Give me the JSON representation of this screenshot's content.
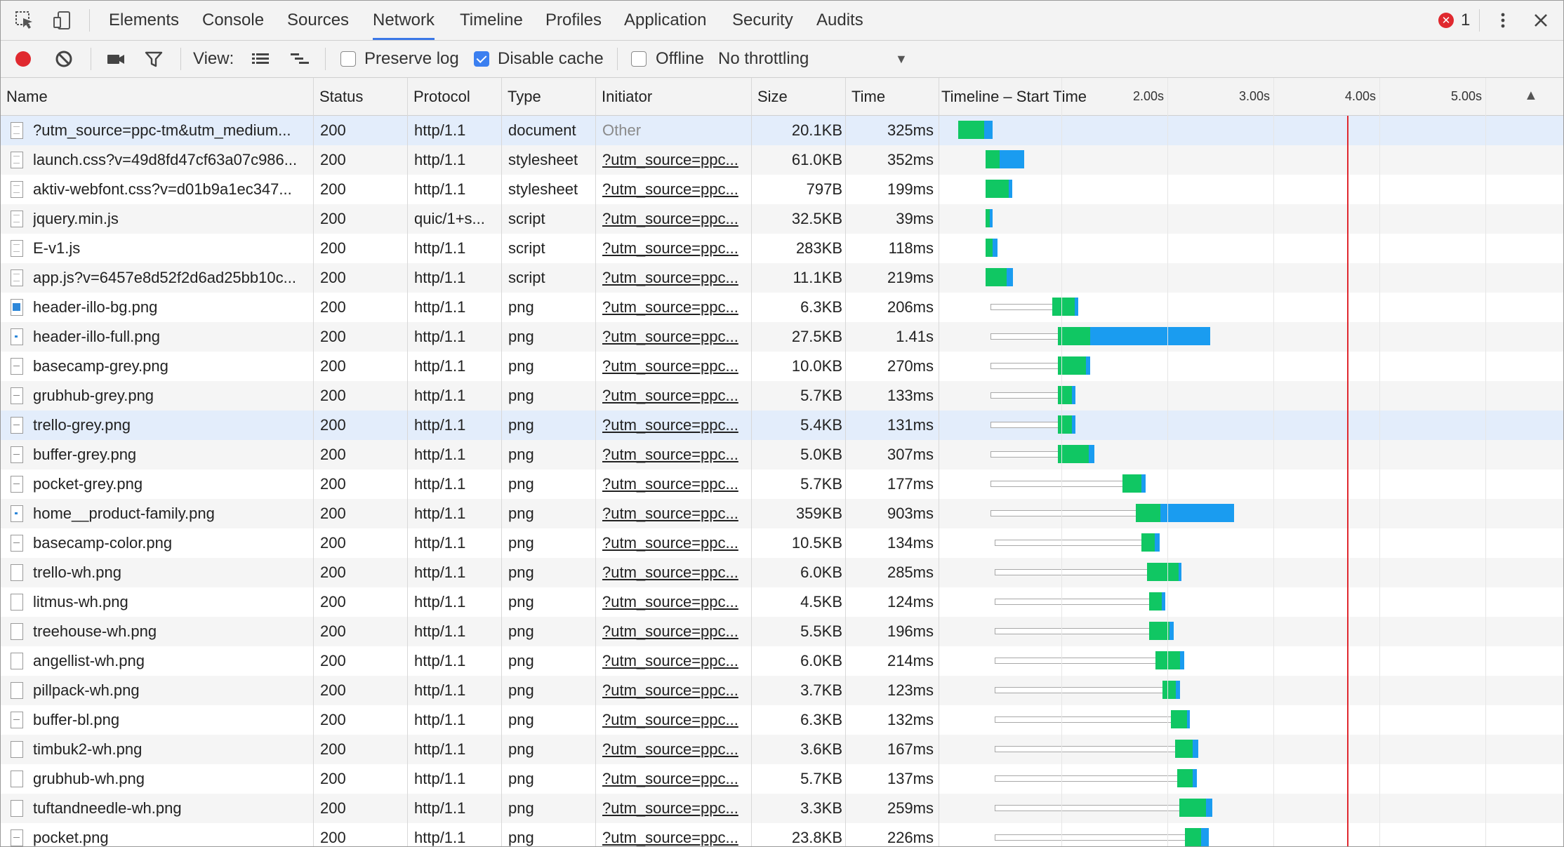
{
  "tabs": [
    "Elements",
    "Console",
    "Sources",
    "Network",
    "Timeline",
    "Profiles",
    "Application",
    "Security",
    "Audits"
  ],
  "active_tab": "Network",
  "error_count": "1",
  "toolbar": {
    "view_label": "View:",
    "preserve_log": "Preserve log",
    "preserve_log_checked": false,
    "disable_cache": "Disable cache",
    "disable_cache_checked": true,
    "offline": "Offline",
    "offline_checked": false,
    "throttling": "No throttling"
  },
  "columns": {
    "name": "Name",
    "status": "Status",
    "protocol": "Protocol",
    "type": "Type",
    "initiator": "Initiator",
    "size": "Size",
    "time": "Time",
    "timeline": "Timeline – Start Time"
  },
  "timeline_ticks": [
    "2.00s",
    "3.00s",
    "4.00s",
    "5.00s"
  ],
  "colors": {
    "accent": "#3b78e7",
    "receiving": "#10c763",
    "downloading": "#1a9cf0",
    "load_marker": "#e0292f"
  },
  "requests": [
    {
      "name": "?utm_source=ppc-tm&utm_medium...",
      "status": "200",
      "protocol": "http/1.1",
      "type": "document",
      "initiator": "Other",
      "size": "20.1KB",
      "time": "325ms",
      "icon": "document"
    },
    {
      "name": "launch.css?v=49d8fd47cf63a07c986...",
      "status": "200",
      "protocol": "http/1.1",
      "type": "stylesheet",
      "initiator": "?utm_source=ppc...",
      "size": "61.0KB",
      "time": "352ms",
      "icon": "document"
    },
    {
      "name": "aktiv-webfont.css?v=d01b9a1ec347...",
      "status": "200",
      "protocol": "http/1.1",
      "type": "stylesheet",
      "initiator": "?utm_source=ppc...",
      "size": "797B",
      "time": "199ms",
      "icon": "document"
    },
    {
      "name": "jquery.min.js",
      "status": "200",
      "protocol": "quic/1+s...",
      "type": "script",
      "initiator": "?utm_source=ppc...",
      "size": "32.5KB",
      "time": "39ms",
      "icon": "document"
    },
    {
      "name": "E-v1.js",
      "status": "200",
      "protocol": "http/1.1",
      "type": "script",
      "initiator": "?utm_source=ppc...",
      "size": "283KB",
      "time": "118ms",
      "icon": "document"
    },
    {
      "name": "app.js?v=6457e8d52f2d6ad25bb10c...",
      "status": "200",
      "protocol": "http/1.1",
      "type": "script",
      "initiator": "?utm_source=ppc...",
      "size": "11.1KB",
      "time": "219ms",
      "icon": "document"
    },
    {
      "name": "header-illo-bg.png",
      "status": "200",
      "protocol": "http/1.1",
      "type": "png",
      "initiator": "?utm_source=ppc...",
      "size": "6.3KB",
      "time": "206ms",
      "icon": "image-blue"
    },
    {
      "name": "header-illo-full.png",
      "status": "200",
      "protocol": "http/1.1",
      "type": "png",
      "initiator": "?utm_source=ppc...",
      "size": "27.5KB",
      "time": "1.41s",
      "icon": "image-small"
    },
    {
      "name": "basecamp-grey.png",
      "status": "200",
      "protocol": "http/1.1",
      "type": "png",
      "initiator": "?utm_source=ppc...",
      "size": "10.0KB",
      "time": "270ms",
      "icon": "image-line"
    },
    {
      "name": "grubhub-grey.png",
      "status": "200",
      "protocol": "http/1.1",
      "type": "png",
      "initiator": "?utm_source=ppc...",
      "size": "5.7KB",
      "time": "133ms",
      "icon": "image-line"
    },
    {
      "name": "trello-grey.png",
      "status": "200",
      "protocol": "http/1.1",
      "type": "png",
      "initiator": "?utm_source=ppc...",
      "size": "5.4KB",
      "time": "131ms",
      "icon": "image-line"
    },
    {
      "name": "buffer-grey.png",
      "status": "200",
      "protocol": "http/1.1",
      "type": "png",
      "initiator": "?utm_source=ppc...",
      "size": "5.0KB",
      "time": "307ms",
      "icon": "image-line"
    },
    {
      "name": "pocket-grey.png",
      "status": "200",
      "protocol": "http/1.1",
      "type": "png",
      "initiator": "?utm_source=ppc...",
      "size": "5.7KB",
      "time": "177ms",
      "icon": "image-line"
    },
    {
      "name": "home__product-family.png",
      "status": "200",
      "protocol": "http/1.1",
      "type": "png",
      "initiator": "?utm_source=ppc...",
      "size": "359KB",
      "time": "903ms",
      "icon": "image-small"
    },
    {
      "name": "basecamp-color.png",
      "status": "200",
      "protocol": "http/1.1",
      "type": "png",
      "initiator": "?utm_source=ppc...",
      "size": "10.5KB",
      "time": "134ms",
      "icon": "image-line"
    },
    {
      "name": "trello-wh.png",
      "status": "200",
      "protocol": "http/1.1",
      "type": "png",
      "initiator": "?utm_source=ppc...",
      "size": "6.0KB",
      "time": "285ms",
      "icon": "image-blank"
    },
    {
      "name": "litmus-wh.png",
      "status": "200",
      "protocol": "http/1.1",
      "type": "png",
      "initiator": "?utm_source=ppc...",
      "size": "4.5KB",
      "time": "124ms",
      "icon": "image-blank"
    },
    {
      "name": "treehouse-wh.png",
      "status": "200",
      "protocol": "http/1.1",
      "type": "png",
      "initiator": "?utm_source=ppc...",
      "size": "5.5KB",
      "time": "196ms",
      "icon": "image-blank"
    },
    {
      "name": "angellist-wh.png",
      "status": "200",
      "protocol": "http/1.1",
      "type": "png",
      "initiator": "?utm_source=ppc...",
      "size": "6.0KB",
      "time": "214ms",
      "icon": "image-blank"
    },
    {
      "name": "pillpack-wh.png",
      "status": "200",
      "protocol": "http/1.1",
      "type": "png",
      "initiator": "?utm_source=ppc...",
      "size": "3.7KB",
      "time": "123ms",
      "icon": "image-blank"
    },
    {
      "name": "buffer-bl.png",
      "status": "200",
      "protocol": "http/1.1",
      "type": "png",
      "initiator": "?utm_source=ppc...",
      "size": "6.3KB",
      "time": "132ms",
      "icon": "image-line"
    },
    {
      "name": "timbuk2-wh.png",
      "status": "200",
      "protocol": "http/1.1",
      "type": "png",
      "initiator": "?utm_source=ppc...",
      "size": "3.6KB",
      "time": "167ms",
      "icon": "image-blank"
    },
    {
      "name": "grubhub-wh.png",
      "status": "200",
      "protocol": "http/1.1",
      "type": "png",
      "initiator": "?utm_source=ppc...",
      "size": "5.7KB",
      "time": "137ms",
      "icon": "image-blank"
    },
    {
      "name": "tuftandneedle-wh.png",
      "status": "200",
      "protocol": "http/1.1",
      "type": "png",
      "initiator": "?utm_source=ppc...",
      "size": "3.3KB",
      "time": "259ms",
      "icon": "image-blank"
    },
    {
      "name": "pocket.png",
      "status": "200",
      "protocol": "http/1.1",
      "type": "png",
      "initiator": "?utm_source=ppc...",
      "size": "23.8KB",
      "time": "226ms",
      "icon": "image-line"
    }
  ]
}
